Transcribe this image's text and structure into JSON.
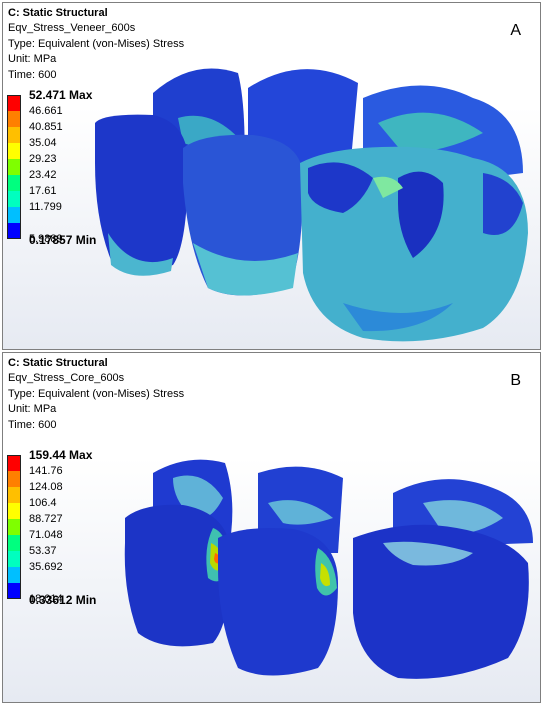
{
  "panels": [
    {
      "title": "C: Static Structural",
      "result": "Eqv_Stress_Veneer_600s",
      "type": "Type: Equivalent (von-Mises) Stress",
      "unit": "Unit: MPa",
      "time": "Time: 600",
      "letter": "A",
      "legend": [
        "52.471 Max",
        "46.661",
        "40.851",
        "35.04",
        "29.23",
        "23.42",
        "17.61",
        "11.799",
        "5.9889",
        "0.17857 Min"
      ]
    },
    {
      "title": "C: Static Structural",
      "result": "Eqv_Stress_Core_600s",
      "type": "Type: Equivalent (von-Mises) Stress",
      "unit": "Unit: MPa",
      "time": "Time: 600",
      "letter": "B",
      "legend": [
        "159.44 Max",
        "141.76",
        "124.08",
        "106.4",
        "88.727",
        "71.048",
        "53.37",
        "35.692",
        "18.014",
        "0.33612 Min"
      ]
    }
  ],
  "legend_colors": [
    "#ff0000",
    "#ff7f00",
    "#ffbf00",
    "#ffff00",
    "#7fff00",
    "#00ff7f",
    "#00ffbf",
    "#00bfff",
    "#0000ff"
  ]
}
